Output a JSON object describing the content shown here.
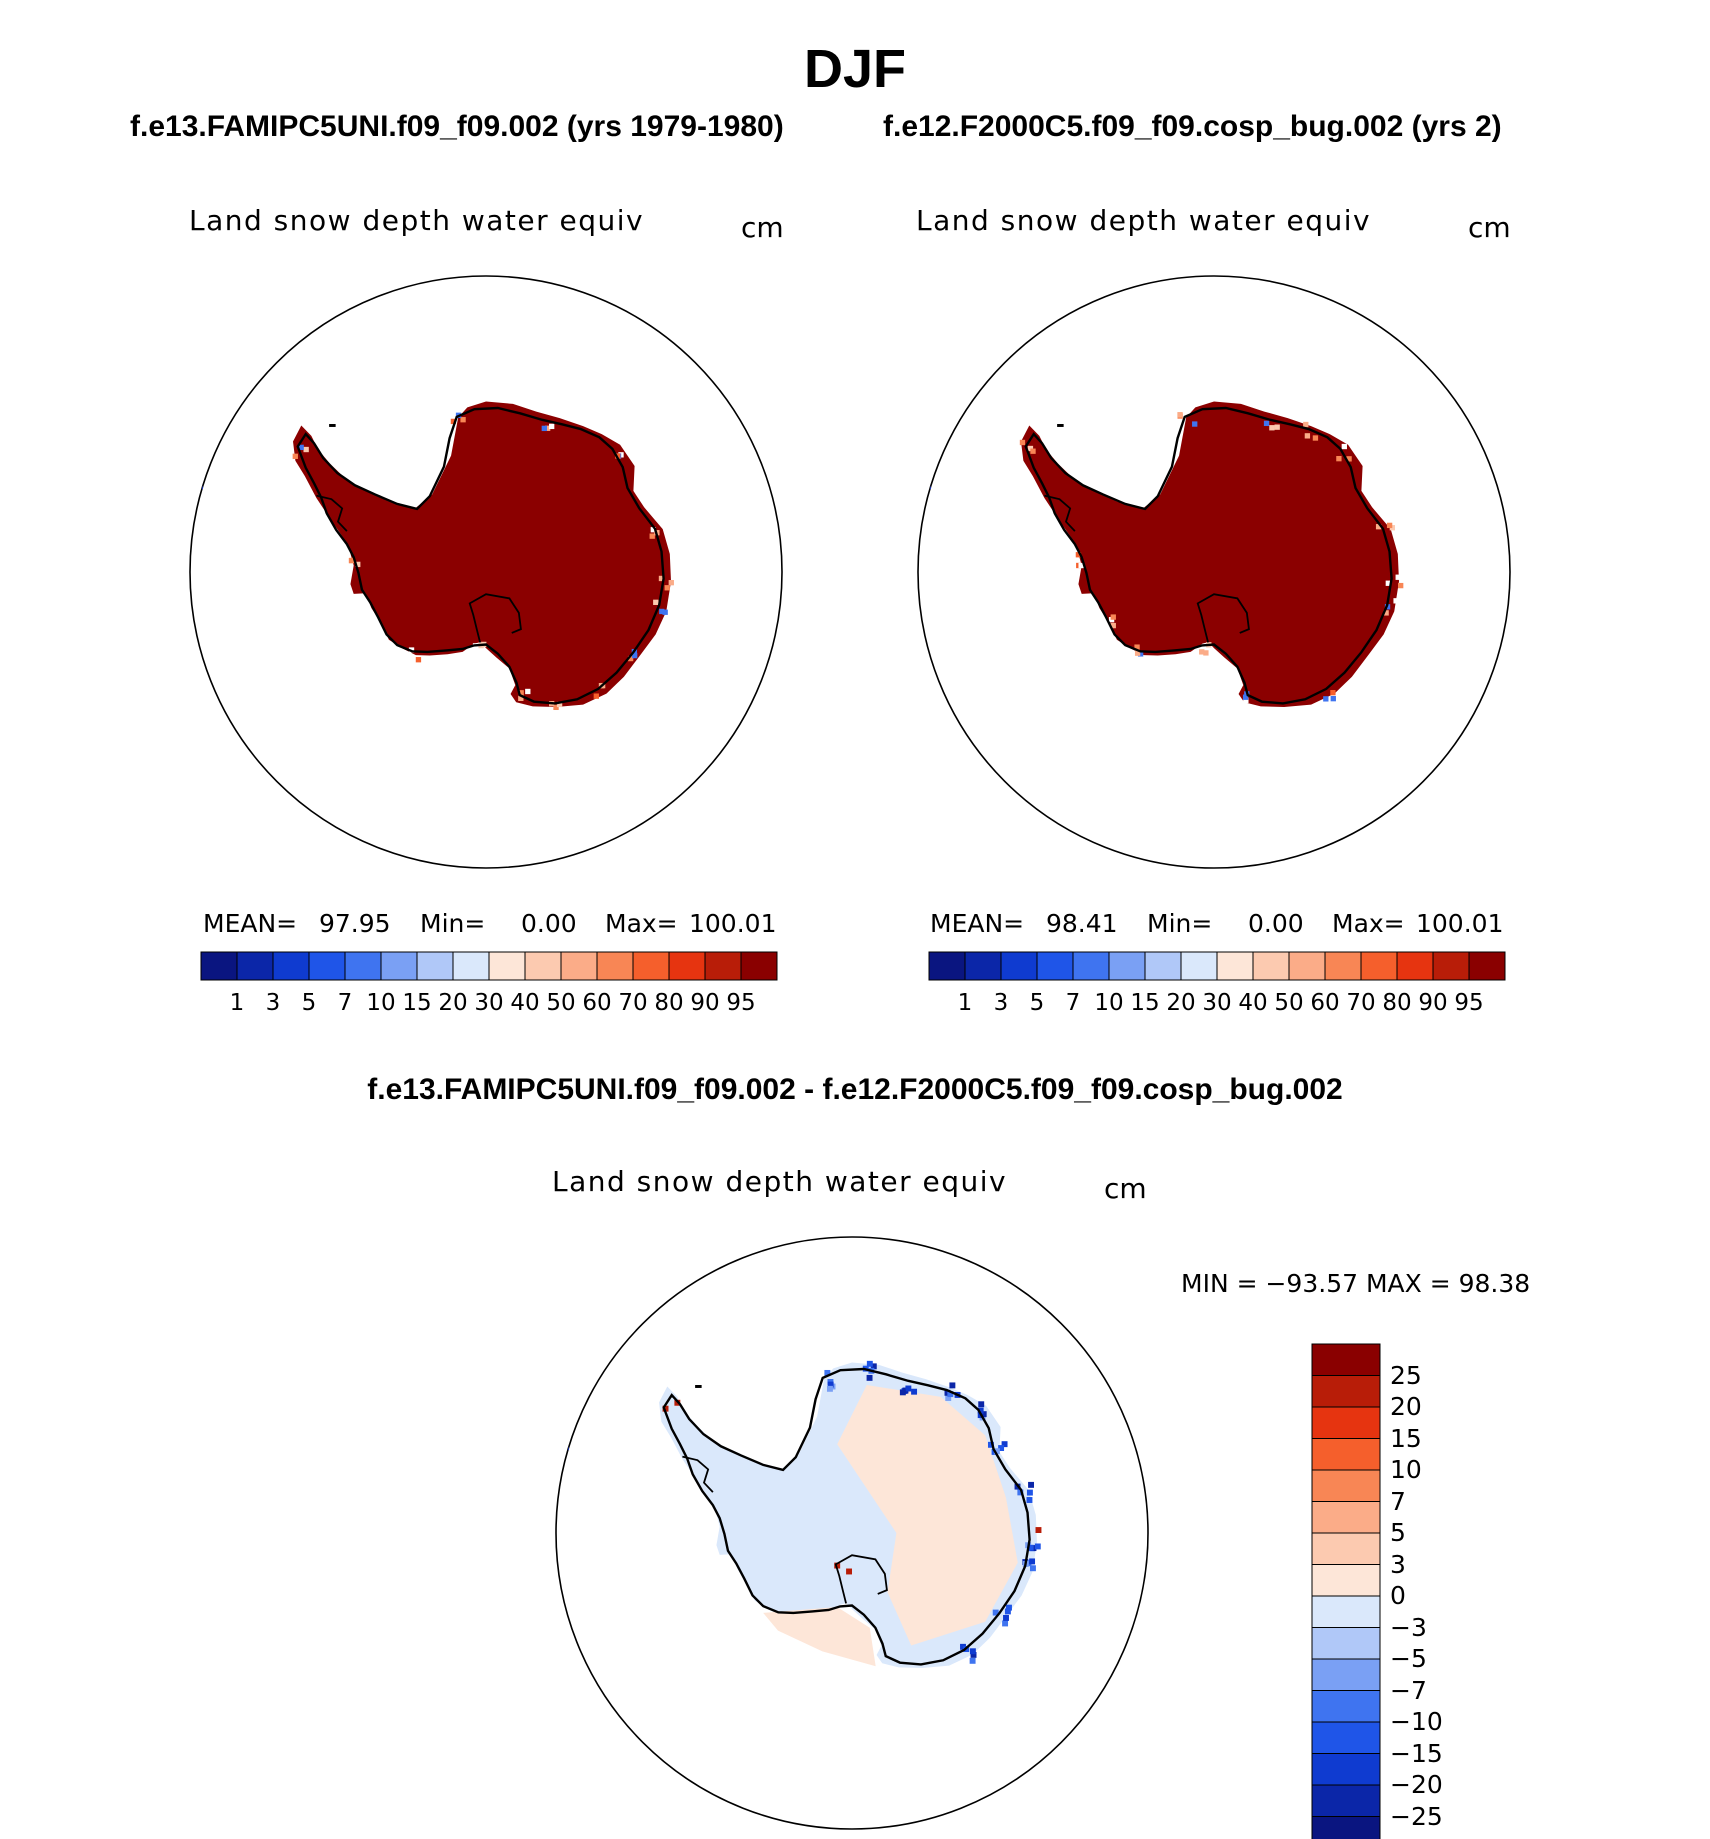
{
  "figure": {
    "title": "DJF",
    "run_a_title": "f.e13.FAMIPC5UNI.f09_f09.002 (yrs 1979-1980)",
    "run_b_title": "f.e12.F2000C5.f09_f09.cosp_bug.002 (yrs 2)",
    "diff_title": "f.e13.FAMIPC5UNI.f09_f09.002 - f.e12.F2000C5.f09_f09.cosp_bug.002"
  },
  "panels": [
    {
      "id": "run-a",
      "variable": "Land snow depth water equiv",
      "units": "cm",
      "mean_label": "MEAN=",
      "mean": "97.95",
      "min_label": "Min=",
      "min": "0.00",
      "max_label": "Max=",
      "max": "100.01"
    },
    {
      "id": "run-b",
      "variable": "Land snow depth water equiv",
      "units": "cm",
      "mean_label": "MEAN=",
      "mean": "98.41",
      "min_label": "Min=",
      "min": "0.00",
      "max_label": "Max=",
      "max": "100.01"
    },
    {
      "id": "diff",
      "variable": "Land snow depth water equiv",
      "units": "cm",
      "minmax_text": "MIN = −93.57 MAX =   98.38"
    }
  ],
  "colorbar_abs": {
    "ticks": [
      "1",
      "3",
      "5",
      "7",
      "10",
      "15",
      "20",
      "30",
      "40",
      "50",
      "60",
      "70",
      "80",
      "90",
      "95"
    ],
    "colors": [
      "#0a1580",
      "#0b26a8",
      "#0f3bd0",
      "#1f55e8",
      "#3f74f0",
      "#7aa0f4",
      "#b0c8f8",
      "#dae8fb",
      "#fde6d8",
      "#fccab0",
      "#fbac88",
      "#f88655",
      "#f55f2c",
      "#e63410",
      "#b81d08",
      "#8a0000"
    ]
  },
  "colorbar_diff": {
    "ticks": [
      "25",
      "20",
      "15",
      "10",
      "7",
      "5",
      "3",
      "0",
      "−3",
      "−5",
      "−7",
      "−10",
      "−15",
      "−20",
      "−25"
    ],
    "colors": [
      "#8a0000",
      "#b81d08",
      "#e63410",
      "#f55f2c",
      "#f88655",
      "#fbac88",
      "#fccab0",
      "#fde6d8",
      "#dae8fb",
      "#b0c8f8",
      "#7aa0f4",
      "#3f74f0",
      "#1f55e8",
      "#0f3bd0",
      "#0b26a8",
      "#0a1580"
    ]
  },
  "map": {
    "region": "Antarctica (south polar stereographic)",
    "abs_fill": "#8b0000",
    "diff_fill_positive": "#fde6d8",
    "diff_fill_negative": "#dae8fb"
  }
}
